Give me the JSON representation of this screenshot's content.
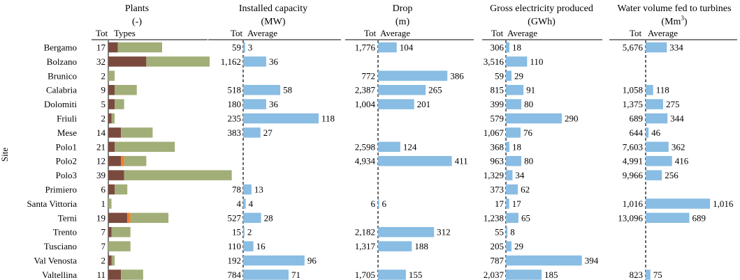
{
  "chart_data": {
    "type": "bar",
    "y_axis_label": "Site",
    "sites": [
      "Bergamo",
      "Bolzano",
      "Brunico",
      "Calabria",
      "Dolomiti",
      "Friuli",
      "Mese",
      "Polo1",
      "Polo2",
      "Polo3",
      "Primiero",
      "Santa Vittoria",
      "Terni",
      "Trento",
      "Tusciano",
      "Val Venosta",
      "Valtellina"
    ],
    "panels": [
      {
        "key": "plants",
        "title_line1": "Plants",
        "title_line2": "(-)",
        "col_tot": "Tot",
        "col_avg": "Types",
        "totals": [
          17,
          32,
          2,
          9,
          5,
          2,
          14,
          21,
          12,
          39,
          6,
          1,
          19,
          7,
          7,
          2,
          11
        ],
        "type_series": [
          {
            "name": "type-brown",
            "color": "#7b4a3e",
            "values": [
              3,
              12,
              0,
              2,
              2,
              1,
              4,
              2,
              4,
              5,
              2,
              0,
              6,
              1,
              0,
              1,
              4
            ]
          },
          {
            "name": "type-orange",
            "color": "#f07f2b",
            "values": [
              0,
              0,
              0,
              0,
              0,
              0,
              0,
              0,
              1,
              0,
              0,
              0,
              1,
              0,
              0,
              0,
              0
            ]
          },
          {
            "name": "type-green",
            "color": "#a2ae78",
            "values": [
              14,
              20,
              2,
              7,
              3,
              1,
              10,
              19,
              7,
              34,
              4,
              1,
              12,
              6,
              7,
              1,
              7
            ]
          }
        ]
      },
      {
        "key": "capacity",
        "title_line1": "Installed capacity",
        "title_line2": "(MW)",
        "col_tot": "Tot",
        "col_avg": "Average",
        "totals": [
          "59",
          "1,162",
          "",
          "518",
          "180",
          "235",
          "383",
          "",
          "",
          "",
          "78",
          "4",
          "527",
          "15",
          "110",
          "192",
          "784"
        ],
        "averages": [
          3,
          36,
          null,
          58,
          36,
          118,
          27,
          null,
          null,
          null,
          13,
          4,
          28,
          2,
          16,
          96,
          71
        ],
        "max": 120
      },
      {
        "key": "drop",
        "title_line1": "Drop",
        "title_line2": "(m)",
        "col_tot": "Tot",
        "col_avg": "Average",
        "totals": [
          "1,776",
          "",
          "772",
          "2,387",
          "1,004",
          "",
          "",
          "2,598",
          "4,934",
          "",
          "",
          "6",
          "",
          "2,182",
          "1,317",
          "",
          "1,705"
        ],
        "averages": [
          104,
          null,
          386,
          265,
          201,
          null,
          null,
          124,
          411,
          null,
          null,
          6,
          null,
          312,
          188,
          null,
          155
        ],
        "max": 420
      },
      {
        "key": "energy",
        "title_line1": "Gross electricity produced",
        "title_line2": "(GWh)",
        "col_tot": "Tot",
        "col_avg": "Average",
        "totals": [
          "306",
          "3,516",
          "59",
          "815",
          "399",
          "579",
          "1,067",
          "368",
          "963",
          "1,329",
          "373",
          "17",
          "1,238",
          "55",
          "205",
          "787",
          "2,037"
        ],
        "averages": [
          18,
          110,
          29,
          91,
          80,
          290,
          76,
          18,
          80,
          34,
          62,
          17,
          65,
          8,
          29,
          394,
          185
        ],
        "max": 400
      },
      {
        "key": "water",
        "title_line1": "Water volume fed to turbines",
        "title_line2": "(Mm",
        "title_sup": "3",
        "title_close": ")",
        "col_tot": "Tot",
        "col_avg": "Average",
        "totals": [
          "5,676",
          "",
          "",
          "1,058",
          "1,375",
          "689",
          "644",
          "7,603",
          "4,991",
          "9,966",
          "",
          "1,016",
          "13,096",
          "",
          "",
          "",
          "823"
        ],
        "averages": [
          334,
          null,
          null,
          118,
          275,
          344,
          46,
          362,
          416,
          256,
          null,
          1016,
          689,
          null,
          null,
          null,
          75
        ],
        "max": 1060
      }
    ]
  }
}
